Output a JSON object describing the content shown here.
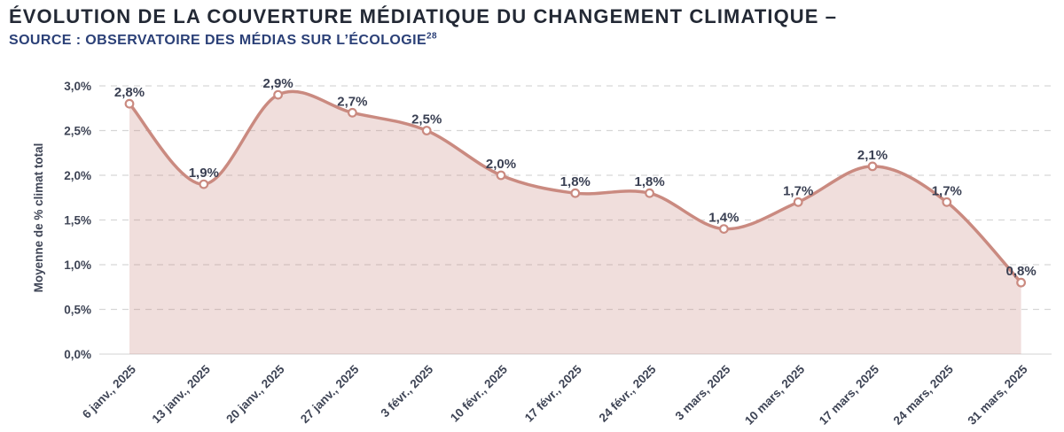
{
  "header": {
    "title": "ÉVOLUTION DE LA COUVERTURE MÉDIATIQUE DU CHANGEMENT CLIMATIQUE –",
    "source_label": "SOURCE : OBSERVATOIRE DES MÉDIAS SUR L’ÉCOLOGIE",
    "source_footnote": "28"
  },
  "chart_data": {
    "type": "area",
    "title": "Évolution de la couverture médiatique du changement climatique",
    "x": [
      "6 janv., 2025",
      "13 janv., 2025",
      "20 janv., 2025",
      "27 janv., 2025",
      "3 févr., 2025",
      "10 févr., 2025",
      "17 févr., 2025",
      "24 févr., 2025",
      "3 mars, 2025",
      "10 mars, 2025",
      "17 mars, 2025",
      "24 mars, 2025",
      "31 mars, 2025"
    ],
    "series": [
      {
        "name": "Moyenne de % climat total",
        "values": [
          2.8,
          1.9,
          2.9,
          2.7,
          2.5,
          2.0,
          1.8,
          1.8,
          1.4,
          1.7,
          2.1,
          1.7,
          0.8
        ]
      }
    ],
    "point_labels": [
      "2,8%",
      "1,9%",
      "2,9%",
      "2,7%",
      "2,5%",
      "2,0%",
      "1,8%",
      "1,8%",
      "1,4%",
      "1,7%",
      "2,1%",
      "1,7%",
      "0,8%"
    ],
    "xlabel": "",
    "ylabel": "Moyenne de % climat total",
    "ylim": [
      0,
      3
    ],
    "y_ticks": [
      0,
      0.5,
      1,
      1.5,
      2,
      2.5,
      3
    ],
    "y_tick_labels": [
      "0,0%",
      "0,5%",
      "1,0%",
      "1,5%",
      "2,0%",
      "2,5%",
      "3,0%"
    ],
    "grid": "horizontal-dashed",
    "legend_position": "none",
    "line_style": "smooth",
    "markers": "open-circle",
    "colors": {
      "line": "#ca8a80",
      "marker_fill": "#ffffff",
      "area_fill": "#ca8a80",
      "area_opacity": "0.28",
      "grid_line": "#d6d6d6",
      "baseline": "#e2e2e2",
      "tick_text": "#3e4455",
      "point_label_text": "#3a4053",
      "title_text": "#232935",
      "subtitle_text": "#2b4077"
    }
  }
}
